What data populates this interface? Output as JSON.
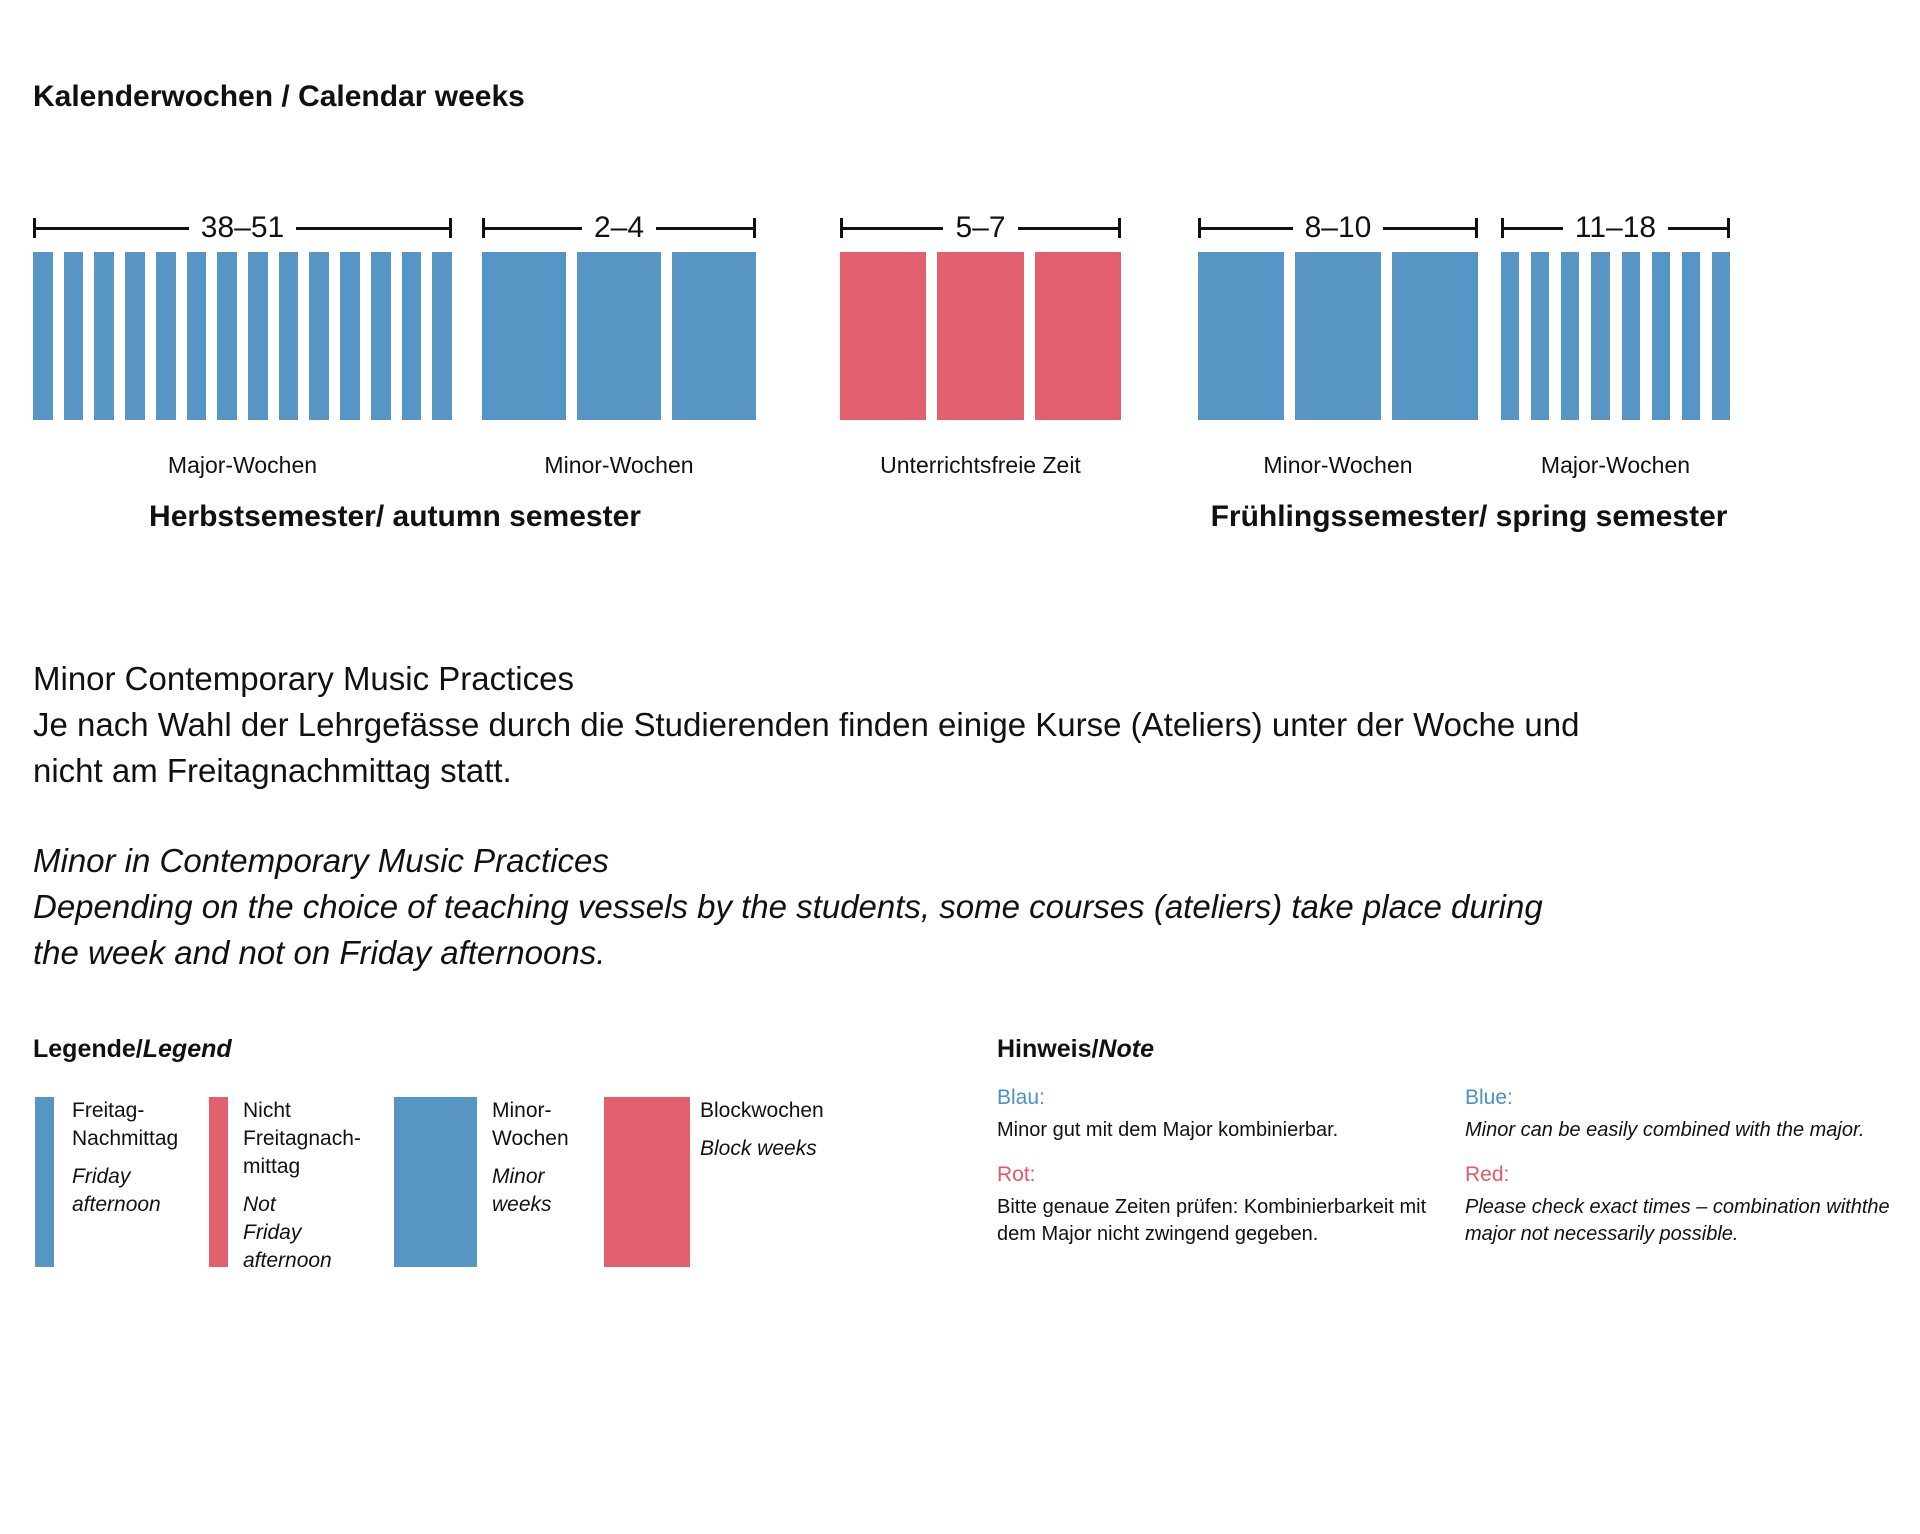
{
  "page": {
    "title": "Kalenderwochen / Calendar weeks"
  },
  "colors": {
    "blue": "#5795c4",
    "red": "#e25f6e",
    "blue_label": "#4a90c9",
    "red_label": "#e05a66",
    "text": "#111111"
  },
  "chart": {
    "type": "calendar-week-diagram",
    "groups": [
      {
        "range": "38–51",
        "caption": "Major-Wochen",
        "color": "blue",
        "bar_count": 14,
        "bar_style": "thin"
      },
      {
        "range": "2–4",
        "caption": "Minor-Wochen",
        "color": "blue",
        "bar_count": 3,
        "bar_style": "wide"
      },
      {
        "range": "5–7",
        "caption": "Unterrichtsfreie Zeit",
        "color": "red",
        "bar_count": 3,
        "bar_style": "wide"
      },
      {
        "range": "8–10",
        "caption": "Minor-Wochen",
        "color": "blue",
        "bar_count": 3,
        "bar_style": "wide"
      },
      {
        "range": "11–18",
        "caption": "Major-Wochen",
        "color": "blue",
        "bar_count": 8,
        "bar_style": "thin"
      }
    ],
    "semesters": [
      {
        "label": "Herbstsemester/ autumn semester"
      },
      {
        "label": "Frühlingssemester/ spring semester"
      }
    ]
  },
  "paragraphs": {
    "de": "Minor Contemporary Music Practices\nJe nach Wahl der Lehrgefässe durch die Studierenden finden einige Kurse (Ateliers) unter der Woche und\nnicht am Freitagnachmittag statt.",
    "en": "Minor in Contemporary Music Practices\nDepending on the choice of teaching vessels by the students, some courses (ateliers) take place during\nthe week and not on Friday afternoons."
  },
  "legend": {
    "heading": {
      "normal": "Legende/",
      "italic": "Legend"
    },
    "items": [
      {
        "swatch": "thin",
        "color": "blue",
        "de": "Freitag-\nNachmittag",
        "en": "Friday\nafternoon"
      },
      {
        "swatch": "thin",
        "color": "red",
        "de": "Nicht\nFreitagnach-\nmittag",
        "en": "Not\nFriday\nafternoon"
      },
      {
        "swatch": "wide",
        "color": "blue",
        "de": "Minor-\nWochen",
        "en": "Minor\nweeks"
      },
      {
        "swatch": "wide",
        "color": "red",
        "de": "Blockwochen",
        "en": "Block weeks"
      }
    ]
  },
  "note": {
    "heading": {
      "normal": "Hinweis/",
      "italic": "Note"
    },
    "columns": [
      {
        "entries": [
          {
            "label": "Blau:",
            "label_color": "blue",
            "italic": false,
            "text": "Minor gut mit dem Major kombinierbar."
          },
          {
            "label": "Rot:",
            "label_color": "red",
            "italic": false,
            "text": "Bitte genaue Zeiten prüfen: Kombinierbarkeit mit\ndem Major nicht zwingend gegeben."
          }
        ]
      },
      {
        "entries": [
          {
            "label": "Blue:",
            "label_color": "blue",
            "italic": true,
            "text": "Minor can be easily combined with the major."
          },
          {
            "label": "Red:",
            "label_color": "red",
            "italic": true,
            "text": "Please check exact times – combination withthe\nmajor not necessarily possible."
          }
        ]
      }
    ]
  }
}
